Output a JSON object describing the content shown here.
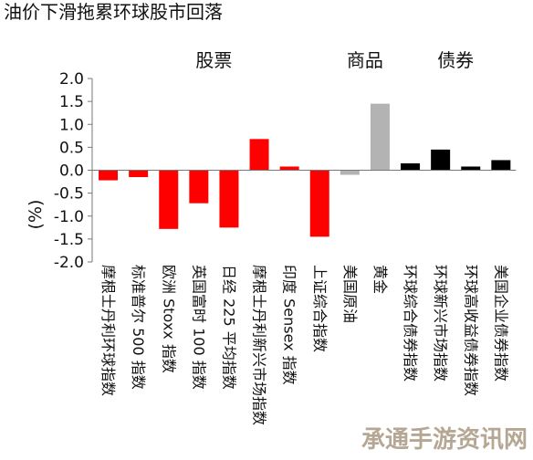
{
  "chart_data": {
    "type": "bar",
    "title": "油价下滑拖累环球股市回落",
    "ylabel": "(%)",
    "ylim": [
      -2.0,
      2.0
    ],
    "yticks": [
      "2.0",
      "1.5",
      "1.0",
      "0.5",
      "0.0",
      "-0.5",
      "-1.0",
      "-1.5",
      "-2.0"
    ],
    "groups": [
      {
        "label": "股票",
        "count": 8
      },
      {
        "label": "商品",
        "count": 2
      },
      {
        "label": "债券",
        "count": 4
      }
    ],
    "categories": [
      "摩根士丹利环球指数",
      "标准普尔 500 指数",
      "欧洲 Stoxx 指数",
      "英国富时 100 指数",
      "日经 225 平均指数",
      "摩根士丹利新兴市场指数",
      "印度 Sensex 指数",
      "上证综合指数",
      "美国原油",
      "黄金",
      "环球综合债券指数",
      "环球新兴市场指数",
      "环球高收益债券指数",
      "美国企业债券指数"
    ],
    "values": [
      -0.22,
      -0.15,
      -1.28,
      -0.72,
      -1.25,
      0.68,
      0.08,
      -1.45,
      -0.1,
      1.45,
      0.15,
      0.45,
      0.08,
      0.22
    ],
    "colors": {
      "stocks": "#ff0000",
      "commodities": "#b3b3b3",
      "bonds": "#000000"
    },
    "grid": false,
    "legend": "none"
  },
  "watermark": "承通手游资讯网"
}
